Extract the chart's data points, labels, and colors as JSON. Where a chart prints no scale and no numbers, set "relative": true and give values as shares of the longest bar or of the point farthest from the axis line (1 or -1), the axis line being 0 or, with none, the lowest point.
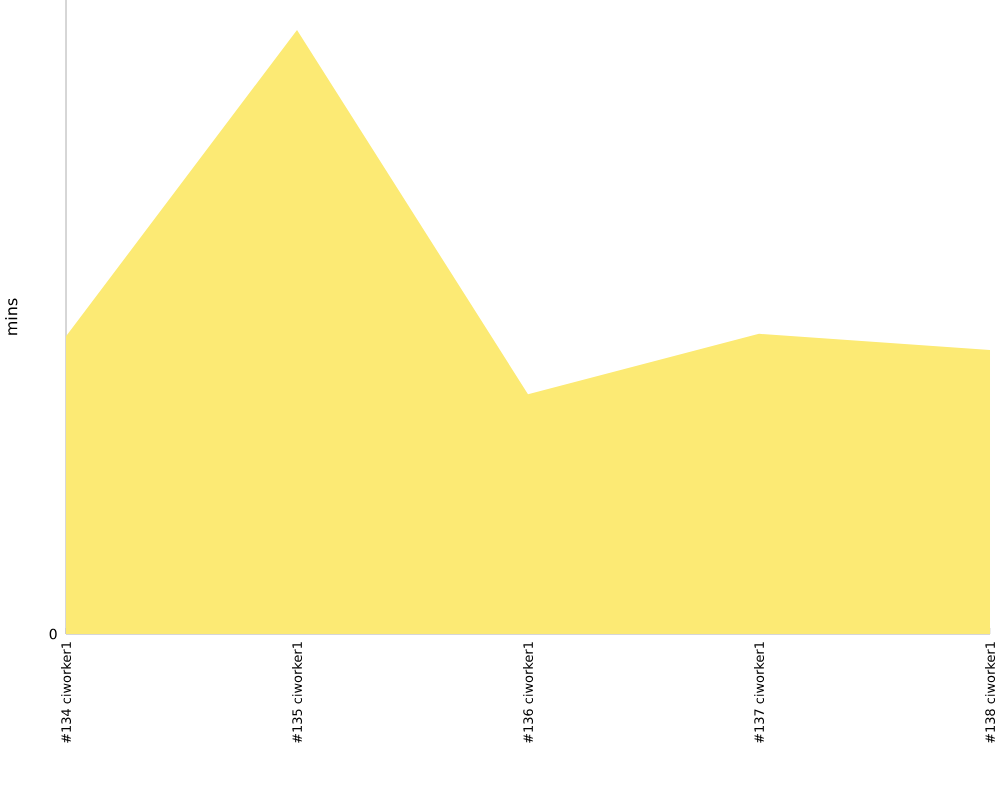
{
  "chart_data": {
    "type": "area",
    "ylabel": "mins",
    "relative": true,
    "categories": [
      "#134 ciworker1",
      "#135 ciworker1",
      "#136 ciworker1",
      "#137 ciworker1",
      "#138 ciworker1"
    ],
    "series": [
      {
        "color": "#fcea74",
        "values": [
          0.493,
          1,
          0.397,
          0.497,
          0.47
        ]
      }
    ],
    "annotations": [
      "0"
    ]
  }
}
